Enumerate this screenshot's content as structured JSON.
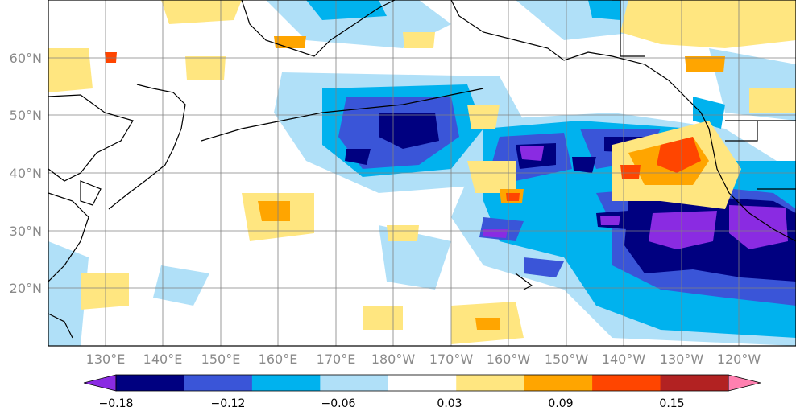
{
  "map": {
    "lon_ticks": [
      "130°E",
      "140°E",
      "150°E",
      "160°E",
      "170°E",
      "180°W",
      "170°W",
      "160°W",
      "150°W",
      "140°W",
      "130°W",
      "120°W"
    ],
    "lat_ticks": [
      "60°N",
      "50°N",
      "40°N",
      "30°N",
      "20°N"
    ],
    "extent": {
      "lon_west": 120,
      "lon_east_wrapped": 250,
      "lat_south": 10,
      "lat_north": 70
    }
  },
  "colorbar": {
    "labels": [
      "−0.18",
      "−0.12",
      "−0.06",
      "0.03",
      "0.09",
      "0.15"
    ],
    "colors": [
      "#8a2be2",
      "#000080",
      "#3a55d8",
      "#00b2ee",
      "#b0e0f8",
      "#ffffff",
      "#ffe680",
      "#ffa500",
      "#ff4500",
      "#b22222",
      "#ff80b0"
    ],
    "extend": "both"
  }
}
